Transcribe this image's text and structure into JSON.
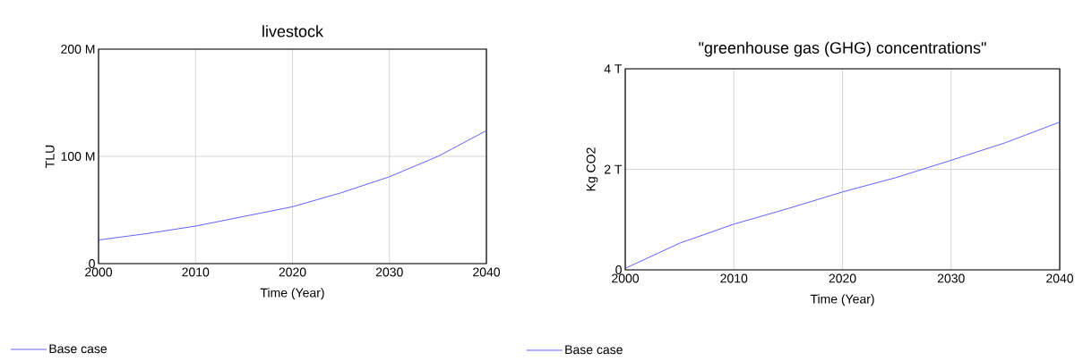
{
  "chart_data": [
    {
      "type": "line",
      "title": "livestock",
      "xlabel": "Time (Year)",
      "ylabel": "TLU",
      "x": [
        2000,
        2005,
        2010,
        2015,
        2020,
        2025,
        2030,
        2035,
        2040
      ],
      "series": [
        {
          "name": "Base case",
          "color": "#5050ff",
          "values": [
            22000000,
            28000000,
            35000000,
            44000000,
            53000000,
            66000000,
            81000000,
            100000000,
            124000000
          ]
        }
      ],
      "xlim": [
        2000,
        2040
      ],
      "ylim": [
        0,
        200000000
      ],
      "xticks": [
        2000,
        2010,
        2020,
        2030,
        2040
      ],
      "yticks": [
        0,
        {
          "value": 100000000,
          "label": "100 M"
        },
        {
          "value": 200000000,
          "label": "200 M"
        }
      ],
      "grid": true,
      "legend": "bottom left"
    },
    {
      "type": "line",
      "title": "\"greenhouse gas (GHG) concentrations\"",
      "xlabel": "Time (Year)",
      "ylabel": "Kg CO2",
      "x": [
        2000,
        2005,
        2010,
        2015,
        2020,
        2025,
        2030,
        2035,
        2040
      ],
      "series": [
        {
          "name": "Base case",
          "color": "#5050ff",
          "values": [
            30000000000,
            530000000000,
            910000000000,
            1220000000000,
            1550000000000,
            1840000000000,
            2180000000000,
            2530000000000,
            2940000000000
          ]
        }
      ],
      "xlim": [
        2000,
        2040
      ],
      "ylim": [
        0,
        4000000000000
      ],
      "xticks": [
        2000,
        2010,
        2020,
        2030,
        2040
      ],
      "yticks": [
        0,
        {
          "value": 2000000000000,
          "label": "2 T"
        },
        {
          "value": 4000000000000,
          "label": "4 T"
        }
      ],
      "grid": true,
      "legend": "bottom left"
    }
  ]
}
